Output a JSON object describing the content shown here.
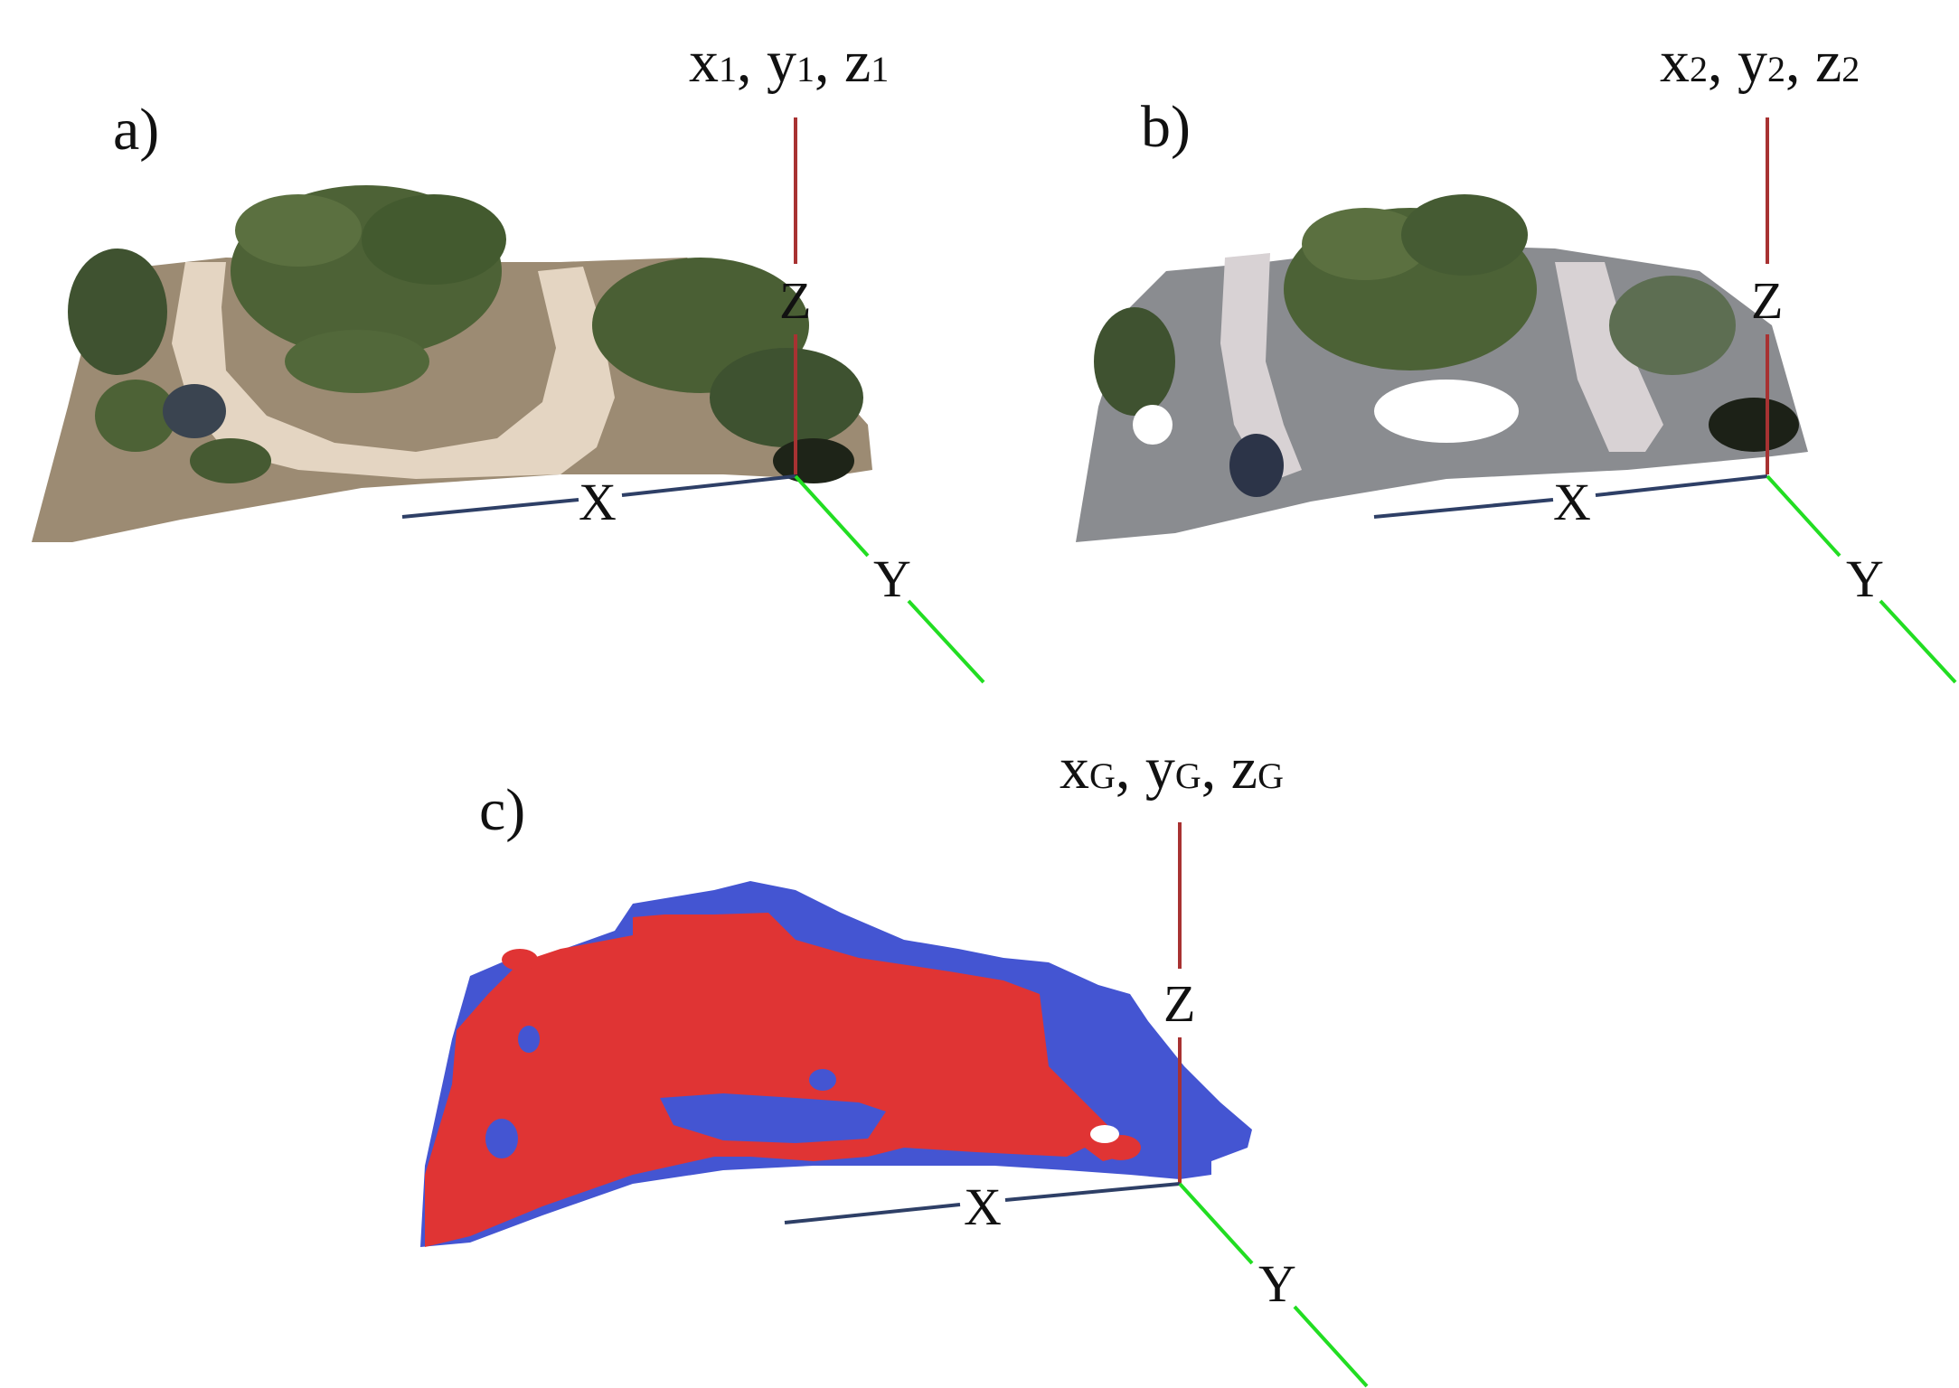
{
  "panels": [
    {
      "id": "a",
      "letter": "a)",
      "coords": [
        {
          "base": "x",
          "sub": "1",
          "sep": ", "
        },
        {
          "base": "y",
          "sub": "1",
          "sep": ", "
        },
        {
          "base": "z",
          "sub": "1",
          "sep": ""
        }
      ],
      "axes": {
        "x": "X",
        "y": "Y",
        "z": "Z"
      },
      "content": "rgb point cloud"
    },
    {
      "id": "b",
      "letter": "b)",
      "coords": [
        {
          "base": "x",
          "sub": "2",
          "sep": ", "
        },
        {
          "base": "y",
          "sub": "2",
          "sep": ", "
        },
        {
          "base": "z",
          "sub": "2",
          "sep": ""
        }
      ],
      "axes": {
        "x": "X",
        "y": "Y",
        "z": "Z"
      },
      "content": "rgb point cloud"
    },
    {
      "id": "c",
      "letter": "c)",
      "coords": [
        {
          "base": "x",
          "sub": "G",
          "sep": ", "
        },
        {
          "base": "y",
          "sub": "G",
          "sep": ", "
        },
        {
          "base": "z",
          "sub": "G",
          "sep": ""
        }
      ],
      "axes": {
        "x": "X",
        "y": "Y",
        "z": "Z"
      },
      "content": "registered point clouds"
    }
  ],
  "colors": {
    "z_axis": "#a83232",
    "x_axis": "#2e3f66",
    "y_axis": "#22dd22",
    "cloud_red": "#e03434",
    "cloud_blue": "#4455d2",
    "ground": "#9c8b73",
    "road": "#e4d5c2",
    "tree": "#4d6236"
  }
}
